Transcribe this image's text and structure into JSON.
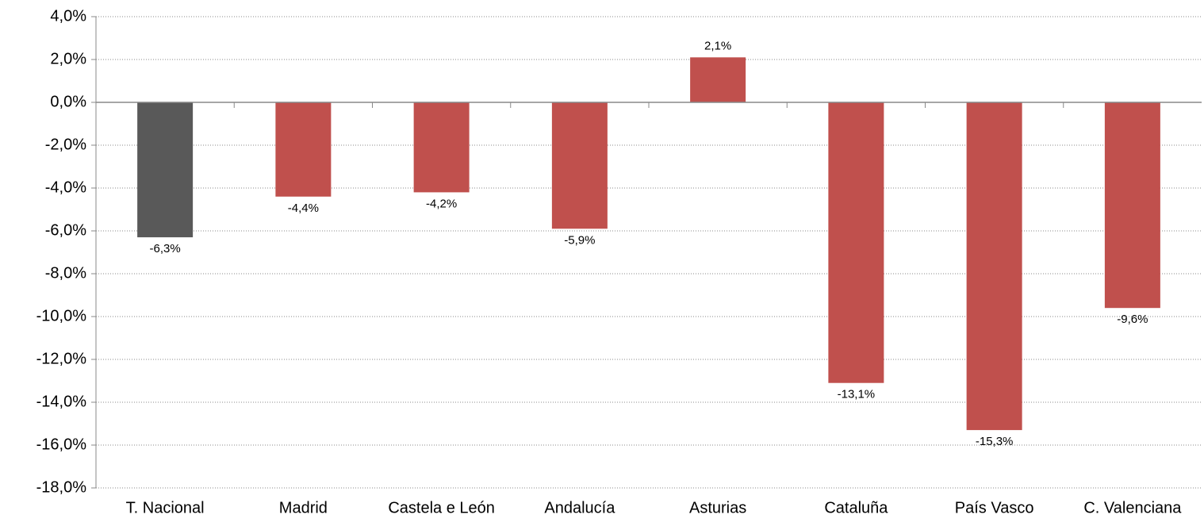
{
  "chart_data": {
    "type": "bar",
    "categories": [
      "T. Nacional",
      "Madrid",
      "Castela e León",
      "Andalucía",
      "Asturias",
      "Cataluña",
      "País Vasco",
      "C. Valenciana"
    ],
    "values": [
      -6.3,
      -4.4,
      -4.2,
      -5.9,
      2.1,
      -13.1,
      -15.3,
      -9.6
    ],
    "value_labels": [
      "-6,3%",
      "-4,4%",
      "-4,2%",
      "-5,9%",
      "2,1%",
      "-13,1%",
      "-15,3%",
      "-9,6%"
    ],
    "colors": [
      "#595959",
      "#c0504d",
      "#c0504d",
      "#c0504d",
      "#c0504d",
      "#c0504d",
      "#c0504d",
      "#c0504d"
    ],
    "ylim": [
      -18,
      4
    ],
    "yticks": [
      {
        "value": -18,
        "label": "-18,0%"
      },
      {
        "value": -16,
        "label": "-16,0%"
      },
      {
        "value": -14,
        "label": "-14,0%"
      },
      {
        "value": -12,
        "label": "-12,0%"
      },
      {
        "value": -10,
        "label": "-10,0%"
      },
      {
        "value": -8,
        "label": "-8,0%"
      },
      {
        "value": -6,
        "label": "-6,0%"
      },
      {
        "value": -4,
        "label": "-4,0%"
      },
      {
        "value": -2,
        "label": "-2,0%"
      },
      {
        "value": 0,
        "label": "0,0%"
      },
      {
        "value": 2,
        "label": "2,0%"
      },
      {
        "value": 4,
        "label": "4,0%"
      }
    ],
    "grid": true
  }
}
